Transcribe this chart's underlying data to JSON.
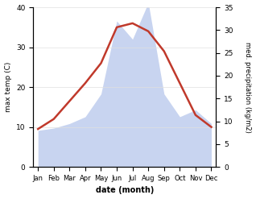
{
  "months": [
    "Jan",
    "Feb",
    "Mar",
    "Apr",
    "May",
    "Jun",
    "Jul",
    "Aug",
    "Sep",
    "Oct",
    "Nov",
    "Dec"
  ],
  "temp": [
    9.5,
    12.0,
    16.5,
    21.0,
    26.0,
    35.0,
    36.0,
    34.0,
    29.0,
    21.0,
    13.0,
    10.0
  ],
  "precip": [
    8.0,
    8.5,
    9.5,
    11.0,
    16.0,
    32.0,
    28.0,
    36.0,
    16.0,
    11.0,
    12.5,
    9.5
  ],
  "temp_color": "#c0392b",
  "precip_fill_color": "#c8d4f0",
  "temp_ylim": [
    0,
    40
  ],
  "precip_ylim": [
    0,
    35
  ],
  "temp_ylabel": "max temp (C)",
  "precip_ylabel": "med. precipitation (kg/m2)",
  "xlabel": "date (month)",
  "bg_color": "#ffffff",
  "grid_color": "#e0e0e0"
}
